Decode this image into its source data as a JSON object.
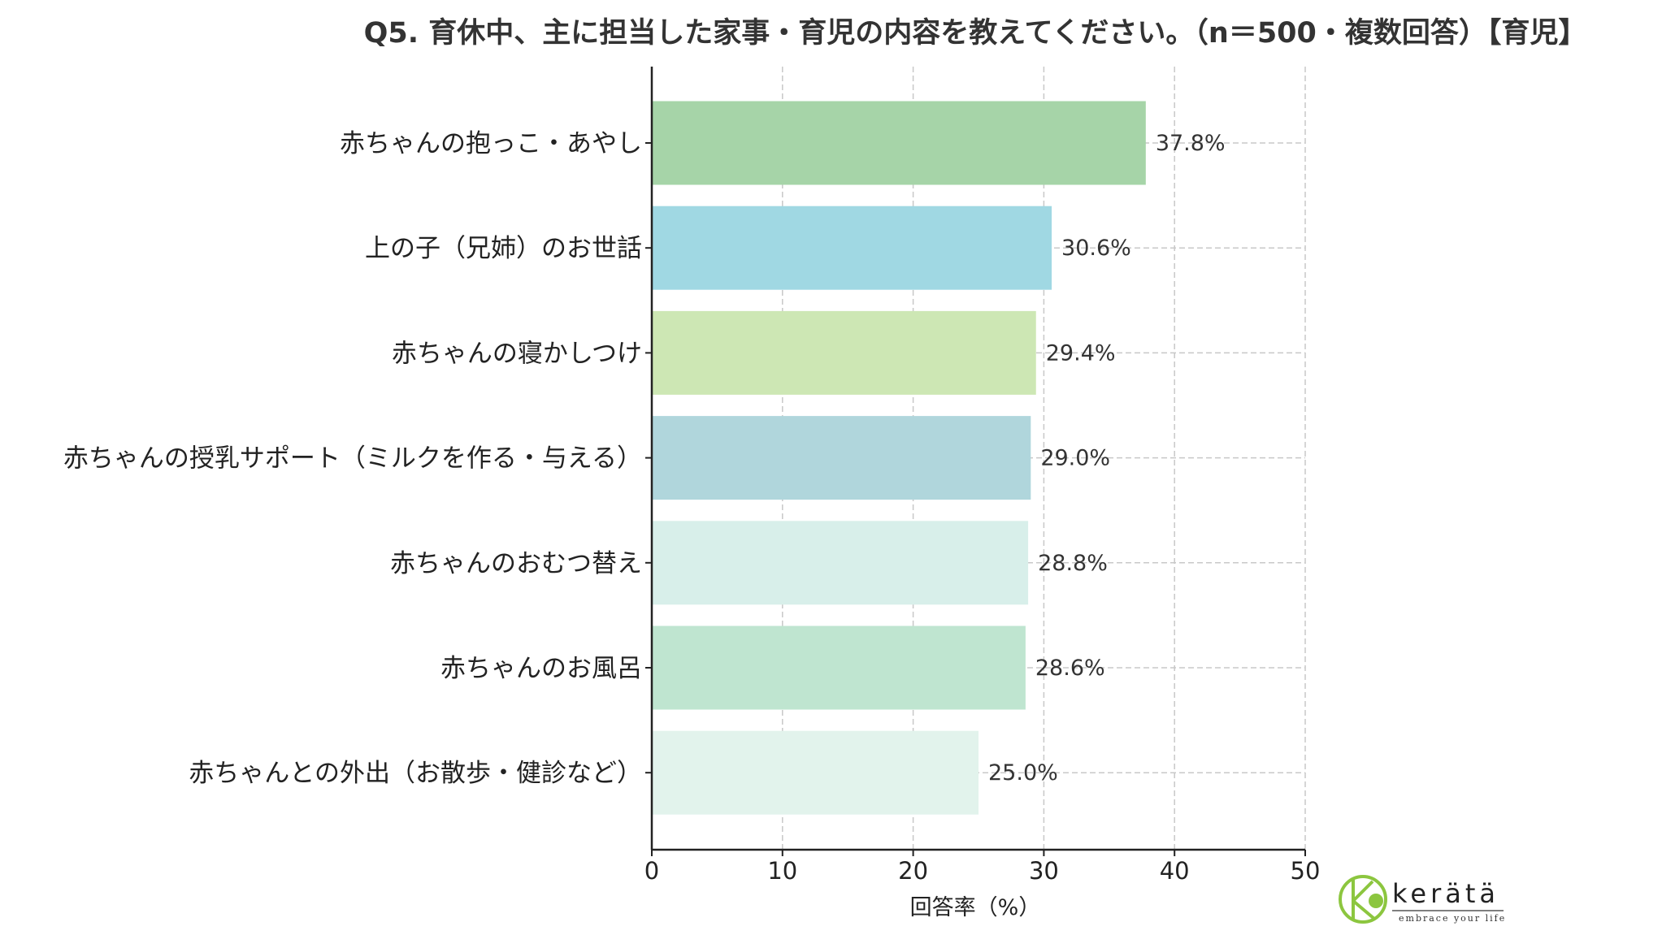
{
  "chart_data": {
    "type": "bar",
    "orientation": "horizontal",
    "title": "Q5. 育休中、主に担当した家事・育児の内容を教えてください。（n＝500・複数回答）【育児】",
    "xlabel": "回答率（%）",
    "ylabel": "",
    "xlim": [
      0,
      50
    ],
    "xticks": [
      "0",
      "10",
      "20",
      "30",
      "40",
      "50"
    ],
    "grid": true,
    "categories": [
      "赤ちゃんの抱っこ・あやし",
      "上の子（兄姉）のお世話",
      "赤ちゃんの寝かしつけ",
      "赤ちゃんの授乳サポート（ミルクを作る・与える）",
      "赤ちゃんのおむつ替え",
      "赤ちゃんのお風呂",
      "赤ちゃんとの外出（お散歩・健診など）"
    ],
    "values": [
      37.8,
      30.6,
      29.4,
      29.0,
      28.8,
      28.6,
      25.0
    ],
    "data_labels": [
      "37.8%",
      "30.6%",
      "29.4%",
      "29.0%",
      "28.8%",
      "28.6%",
      "25.0%"
    ],
    "colors": [
      "#a6d4a8",
      "#a0d8e3",
      "#cde7b4",
      "#b0d6dc",
      "#d8efea",
      "#bfe5d0",
      "#e2f3ec"
    ]
  },
  "logo": {
    "name": "kerätä",
    "tagline": "embrace your life",
    "color": "#8cc63f"
  }
}
